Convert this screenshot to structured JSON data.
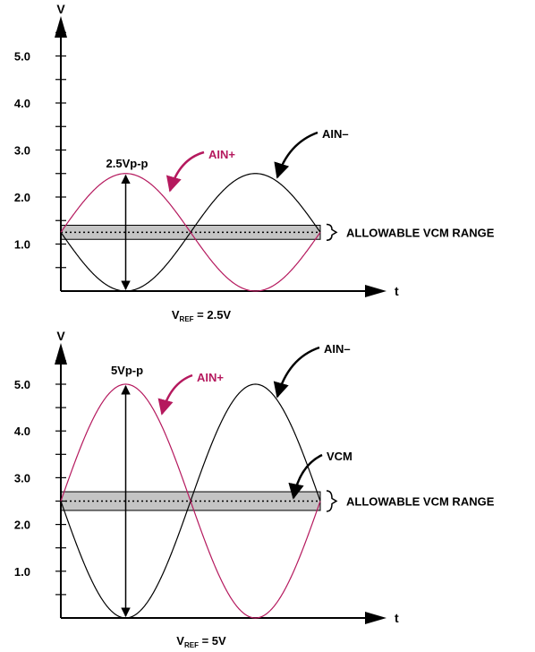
{
  "colors": {
    "ain_plus": "#b5195e",
    "ain_minus": "#000000",
    "vcm_band_fill": "#c4c4c4",
    "axis": "#000000"
  },
  "chart_data": [
    {
      "type": "line",
      "y_axis_label": "V",
      "x_axis_label": "t",
      "ylim": [
        0,
        5.8
      ],
      "y_ticks": [
        "1.0",
        "2.0",
        "3.0",
        "4.0",
        "5.0"
      ],
      "grid": false,
      "series": [
        {
          "name": "AIN+",
          "shape": "sine",
          "min": 0,
          "max": 2.5,
          "cycles": 1,
          "start_phase": "mid-rising"
        },
        {
          "name": "AIN–",
          "shape": "sine",
          "min": 0,
          "max": 2.5,
          "cycles": 1,
          "start_phase": "mid-falling"
        }
      ],
      "vcm": {
        "center": 1.25,
        "band": [
          1.1,
          1.4
        ]
      },
      "annotations": {
        "amplitude": "2.5Vp-p",
        "ain_plus": "AIN+",
        "ain_minus": "AIN–",
        "vcm_range": "ALLOWABLE VCM RANGE",
        "vref_main": "V",
        "vref_sub": "REF",
        "vref_value": " = 2.5V"
      }
    },
    {
      "type": "line",
      "y_axis_label": "V",
      "x_axis_label": "t",
      "ylim": [
        0,
        5.8
      ],
      "y_ticks": [
        "1.0",
        "2.0",
        "3.0",
        "4.0",
        "5.0"
      ],
      "grid": false,
      "series": [
        {
          "name": "AIN+",
          "shape": "sine",
          "min": 0,
          "max": 5,
          "cycles": 1,
          "start_phase": "mid-rising"
        },
        {
          "name": "AIN–",
          "shape": "sine",
          "min": 0,
          "max": 5,
          "cycles": 1,
          "start_phase": "mid-falling"
        }
      ],
      "vcm": {
        "center": 2.5,
        "band": [
          2.3,
          2.7
        ]
      },
      "annotations": {
        "amplitude": "5Vp-p",
        "ain_plus": "AIN+",
        "ain_minus": "AIN–",
        "vcm_label": "VCM",
        "vcm_range": "ALLOWABLE VCM RANGE",
        "vref_main": "V",
        "vref_sub": "REF",
        "vref_value": " = 5V"
      }
    }
  ]
}
